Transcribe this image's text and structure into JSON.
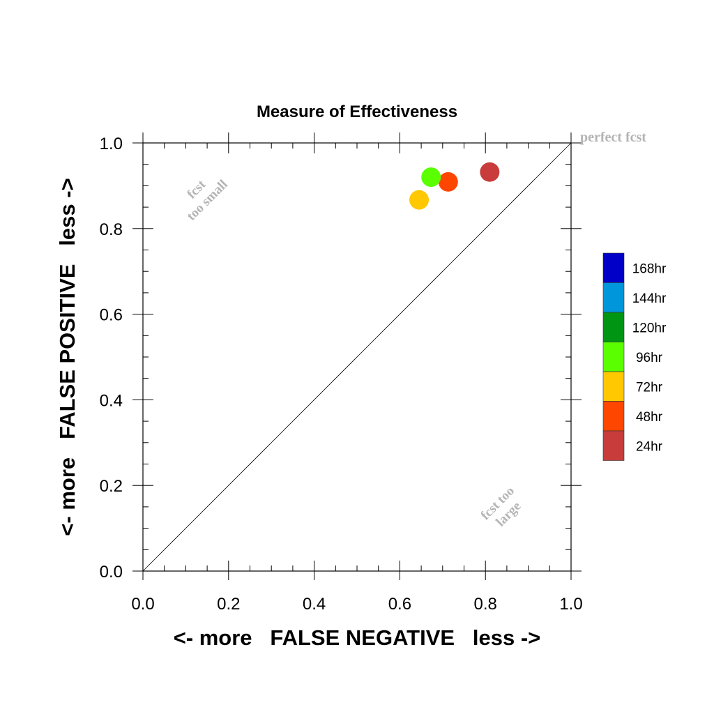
{
  "chart_data": {
    "type": "scatter",
    "title": "Measure of Effectiveness",
    "xlabel": "<- more   FALSE NEGATIVE   less ->",
    "ylabel": "<- more   FALSE POSITIVE   less ->",
    "xlim": [
      0,
      1
    ],
    "ylim": [
      0,
      1
    ],
    "x_ticks": [
      "0.0",
      "0.2",
      "0.4",
      "0.6",
      "0.8",
      "1.0"
    ],
    "y_ticks": [
      "0.0",
      "0.2",
      "0.4",
      "0.6",
      "0.8",
      "1.0"
    ],
    "grid": false,
    "diagonal_line": true,
    "annotations": {
      "top_left": [
        "fcst",
        "too small"
      ],
      "bottom_right": [
        "fcst too",
        "large"
      ],
      "corner": "perfect fcst"
    },
    "legend": {
      "placement": "right",
      "entries": [
        {
          "label": "168hr",
          "color": "#0000c8"
        },
        {
          "label": "144hr",
          "color": "#0096dc"
        },
        {
          "label": "120hr",
          "color": "#009614"
        },
        {
          "label": "96hr",
          "color": "#5aff00"
        },
        {
          "label": "72hr",
          "color": "#ffc800"
        },
        {
          "label": "48hr",
          "color": "#ff4600"
        },
        {
          "label": "24hr",
          "color": "#c83c3c"
        }
      ]
    },
    "points": [
      {
        "label": "24hr",
        "x": 0.81,
        "y": 0.932,
        "color": "#c83c3c"
      },
      {
        "label": "48hr",
        "x": 0.713,
        "y": 0.909,
        "color": "#ff4600"
      },
      {
        "label": "72hr",
        "x": 0.645,
        "y": 0.867,
        "color": "#ffc800"
      },
      {
        "label": "96hr",
        "x": 0.673,
        "y": 0.92,
        "color": "#5aff00"
      }
    ]
  }
}
